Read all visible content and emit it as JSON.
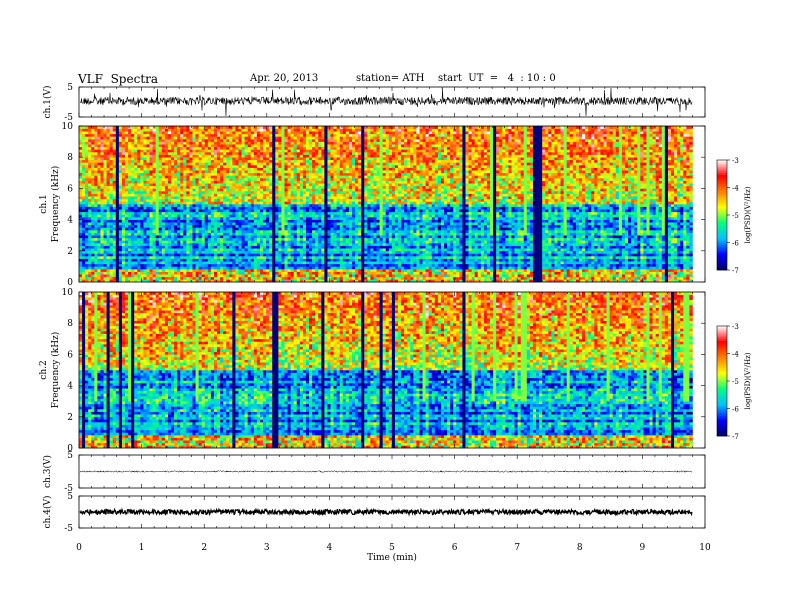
{
  "header": {
    "title": "VLF  Spectra",
    "date": "Apr. 20, 2013",
    "station": "station= ATH",
    "start": "start  UT  =   4  : 10 : 0"
  },
  "chart_data": {
    "type": "heatmap",
    "x_axis": {
      "label": "Time  (min)",
      "range": [
        0,
        10
      ],
      "ticks": [
        "0",
        "1",
        "2",
        "3",
        "4",
        "5",
        "6",
        "7",
        "8",
        "9",
        "10"
      ],
      "data_end_min": 9.8
    },
    "panels": [
      {
        "id": "ch1-waveform",
        "type": "line",
        "ylabel": "ch.1(V)",
        "ylim": [
          -5,
          5
        ],
        "ticks": [
          "5",
          "-5"
        ]
      },
      {
        "id": "ch1-spectrogram",
        "type": "heatmap",
        "ylabel": "ch.1\nFrequency (kHz)",
        "ylabel_lines": [
          "ch.1",
          "Frequency  (kHz)"
        ],
        "ylim": [
          0,
          10
        ],
        "ticks": [
          "0",
          "2",
          "4",
          "6",
          "8",
          "10"
        ],
        "colorbar": {
          "label": "log(PSD)(V²/Hz)",
          "range": [
            -7,
            -3
          ],
          "ticks": [
            "-3",
            "-4",
            "-5",
            "-6",
            "-7"
          ]
        }
      },
      {
        "id": "ch2-spectrogram",
        "type": "heatmap",
        "ylabel_lines": [
          "ch.2",
          "Frequency  (kHz)"
        ],
        "ylim": [
          0,
          10
        ],
        "ticks": [
          "0",
          "2",
          "4",
          "6",
          "8",
          "10"
        ],
        "colorbar": {
          "label": "log(PSD)(V²/Hz)",
          "range": [
            -7,
            -3
          ],
          "ticks": [
            "-3",
            "-4",
            "-5",
            "-6",
            "-7"
          ]
        }
      },
      {
        "id": "ch3-waveform",
        "type": "line",
        "ylabel": "ch.3(V)",
        "ylim": [
          -5,
          5
        ],
        "ticks": [
          "5",
          "-5"
        ]
      },
      {
        "id": "ch4-waveform",
        "type": "line",
        "ylabel": "ch.4(V)",
        "ylim": [
          -5,
          5
        ],
        "ticks": [
          "5",
          "-5"
        ]
      }
    ],
    "colormap": [
      "#000060",
      "#0000ff",
      "#00c0ff",
      "#00ff80",
      "#ffff00",
      "#ff8000",
      "#ff0000",
      "#ffffff"
    ]
  }
}
